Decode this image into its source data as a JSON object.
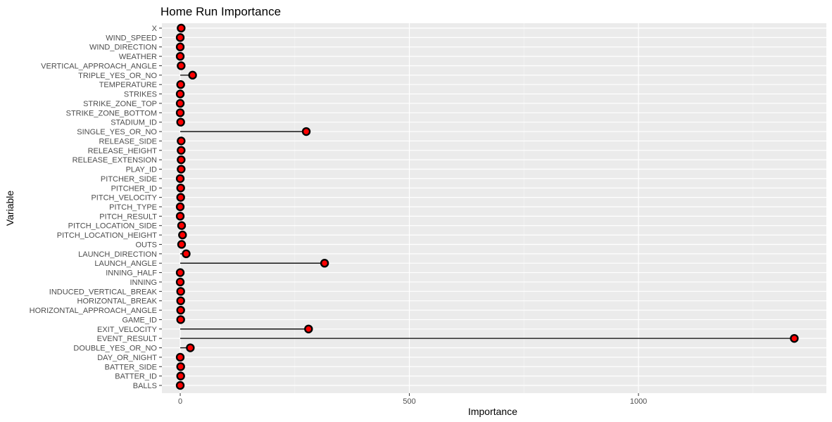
{
  "chart_data": {
    "type": "lollipop",
    "title": "Home Run Importance",
    "xlabel": "Importance",
    "ylabel": "Variable",
    "xlim": [
      -40,
      1410
    ],
    "xticks": [
      0,
      500,
      1000
    ],
    "grid": true,
    "panel_color": "#ebebeb",
    "point_fill": "#ff0000",
    "point_stroke": "#000000",
    "categories": [
      "X",
      "WIND_SPEED",
      "WIND_DIRECTION",
      "WEATHER",
      "VERTICAL_APPROACH_ANGLE",
      "TRIPLE_YES_OR_NO",
      "TEMPERATURE",
      "STRIKES",
      "STRIKE_ZONE_TOP",
      "STRIKE_ZONE_BOTTOM",
      "STADIUM_ID",
      "SINGLE_YES_OR_NO",
      "RELEASE_SIDE",
      "RELEASE_HEIGHT",
      "RELEASE_EXTENSION",
      "PLAY_ID",
      "PITCHER_SIDE",
      "PITCHER_ID",
      "PITCH_VELOCITY",
      "PITCH_TYPE",
      "PITCH_RESULT",
      "PITCH_LOCATION_SIDE",
      "PITCH_LOCATION_HEIGHT",
      "OUTS",
      "LAUNCH_DIRECTION",
      "LAUNCH_ANGLE",
      "INNING_HALF",
      "INNING",
      "INDUCED_VERTICAL_BREAK",
      "HORIZONTAL_BREAK",
      "HORIZONTAL_APPROACH_ANGLE",
      "GAME_ID",
      "EXIT_VELOCITY",
      "EVENT_RESULT",
      "DOUBLE_YES_OR_NO",
      "DAY_OR_NIGHT",
      "BATTER_SIDE",
      "BATTER_ID",
      "BALLS"
    ],
    "values": [
      2,
      0,
      0,
      0,
      2,
      27,
      1,
      0,
      0,
      0,
      1,
      275,
      2,
      2,
      2,
      2,
      0,
      1,
      1,
      0,
      0,
      3,
      5,
      3,
      13,
      315,
      0,
      0,
      1,
      1,
      1,
      1,
      280,
      1340,
      22,
      0,
      1,
      1,
      0
    ]
  }
}
